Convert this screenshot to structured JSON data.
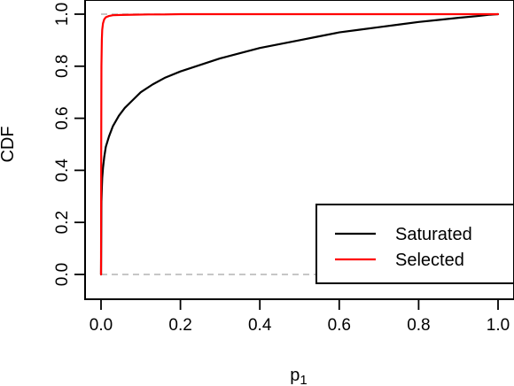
{
  "chart_data": {
    "type": "line",
    "xlabel": "p",
    "xlabel_subscript": "1",
    "ylabel": "CDF",
    "xlim": [
      0,
      1
    ],
    "ylim": [
      0,
      1
    ],
    "xticks": [
      "0.0",
      "0.2",
      "0.4",
      "0.6",
      "0.8",
      "1.0"
    ],
    "yticks": [
      "0.0",
      "0.2",
      "0.4",
      "0.6",
      "0.8",
      "1.0"
    ],
    "grid": false,
    "legend_position": "bottom-right",
    "reference_lines": [
      {
        "y": 0,
        "style": "dashed",
        "color": "#b3b3b3"
      },
      {
        "y": 1,
        "style": "dashed",
        "color": "#b3b3b3"
      }
    ],
    "series": [
      {
        "name": "Saturated",
        "color": "#000000",
        "x": [
          0.0,
          0.001,
          0.002,
          0.003,
          0.005,
          0.008,
          0.012,
          0.02,
          0.03,
          0.045,
          0.06,
          0.08,
          0.1,
          0.13,
          0.16,
          0.2,
          0.25,
          0.3,
          0.35,
          0.4,
          0.45,
          0.5,
          0.55,
          0.6,
          0.65,
          0.7,
          0.75,
          0.8,
          0.85,
          0.9,
          0.95,
          0.98,
          1.0
        ],
        "y": [
          0.0,
          0.28,
          0.33,
          0.37,
          0.41,
          0.45,
          0.49,
          0.53,
          0.57,
          0.61,
          0.64,
          0.67,
          0.7,
          0.73,
          0.755,
          0.78,
          0.805,
          0.83,
          0.85,
          0.87,
          0.885,
          0.9,
          0.915,
          0.93,
          0.94,
          0.95,
          0.96,
          0.97,
          0.978,
          0.986,
          0.993,
          0.998,
          1.0
        ]
      },
      {
        "name": "Selected",
        "color": "#ff0000",
        "x": [
          0.0,
          0.0005,
          0.001,
          0.002,
          0.003,
          0.005,
          0.008,
          0.012,
          0.02,
          0.03,
          0.05,
          0.08,
          0.12,
          0.16,
          0.2,
          0.4,
          0.6,
          0.8,
          1.0
        ],
        "y": [
          0.0,
          0.5,
          0.8,
          0.9,
          0.94,
          0.965,
          0.98,
          0.988,
          0.993,
          0.996,
          0.997,
          0.998,
          0.999,
          0.999,
          1.0,
          1.0,
          1.0,
          1.0,
          1.0
        ]
      }
    ]
  }
}
